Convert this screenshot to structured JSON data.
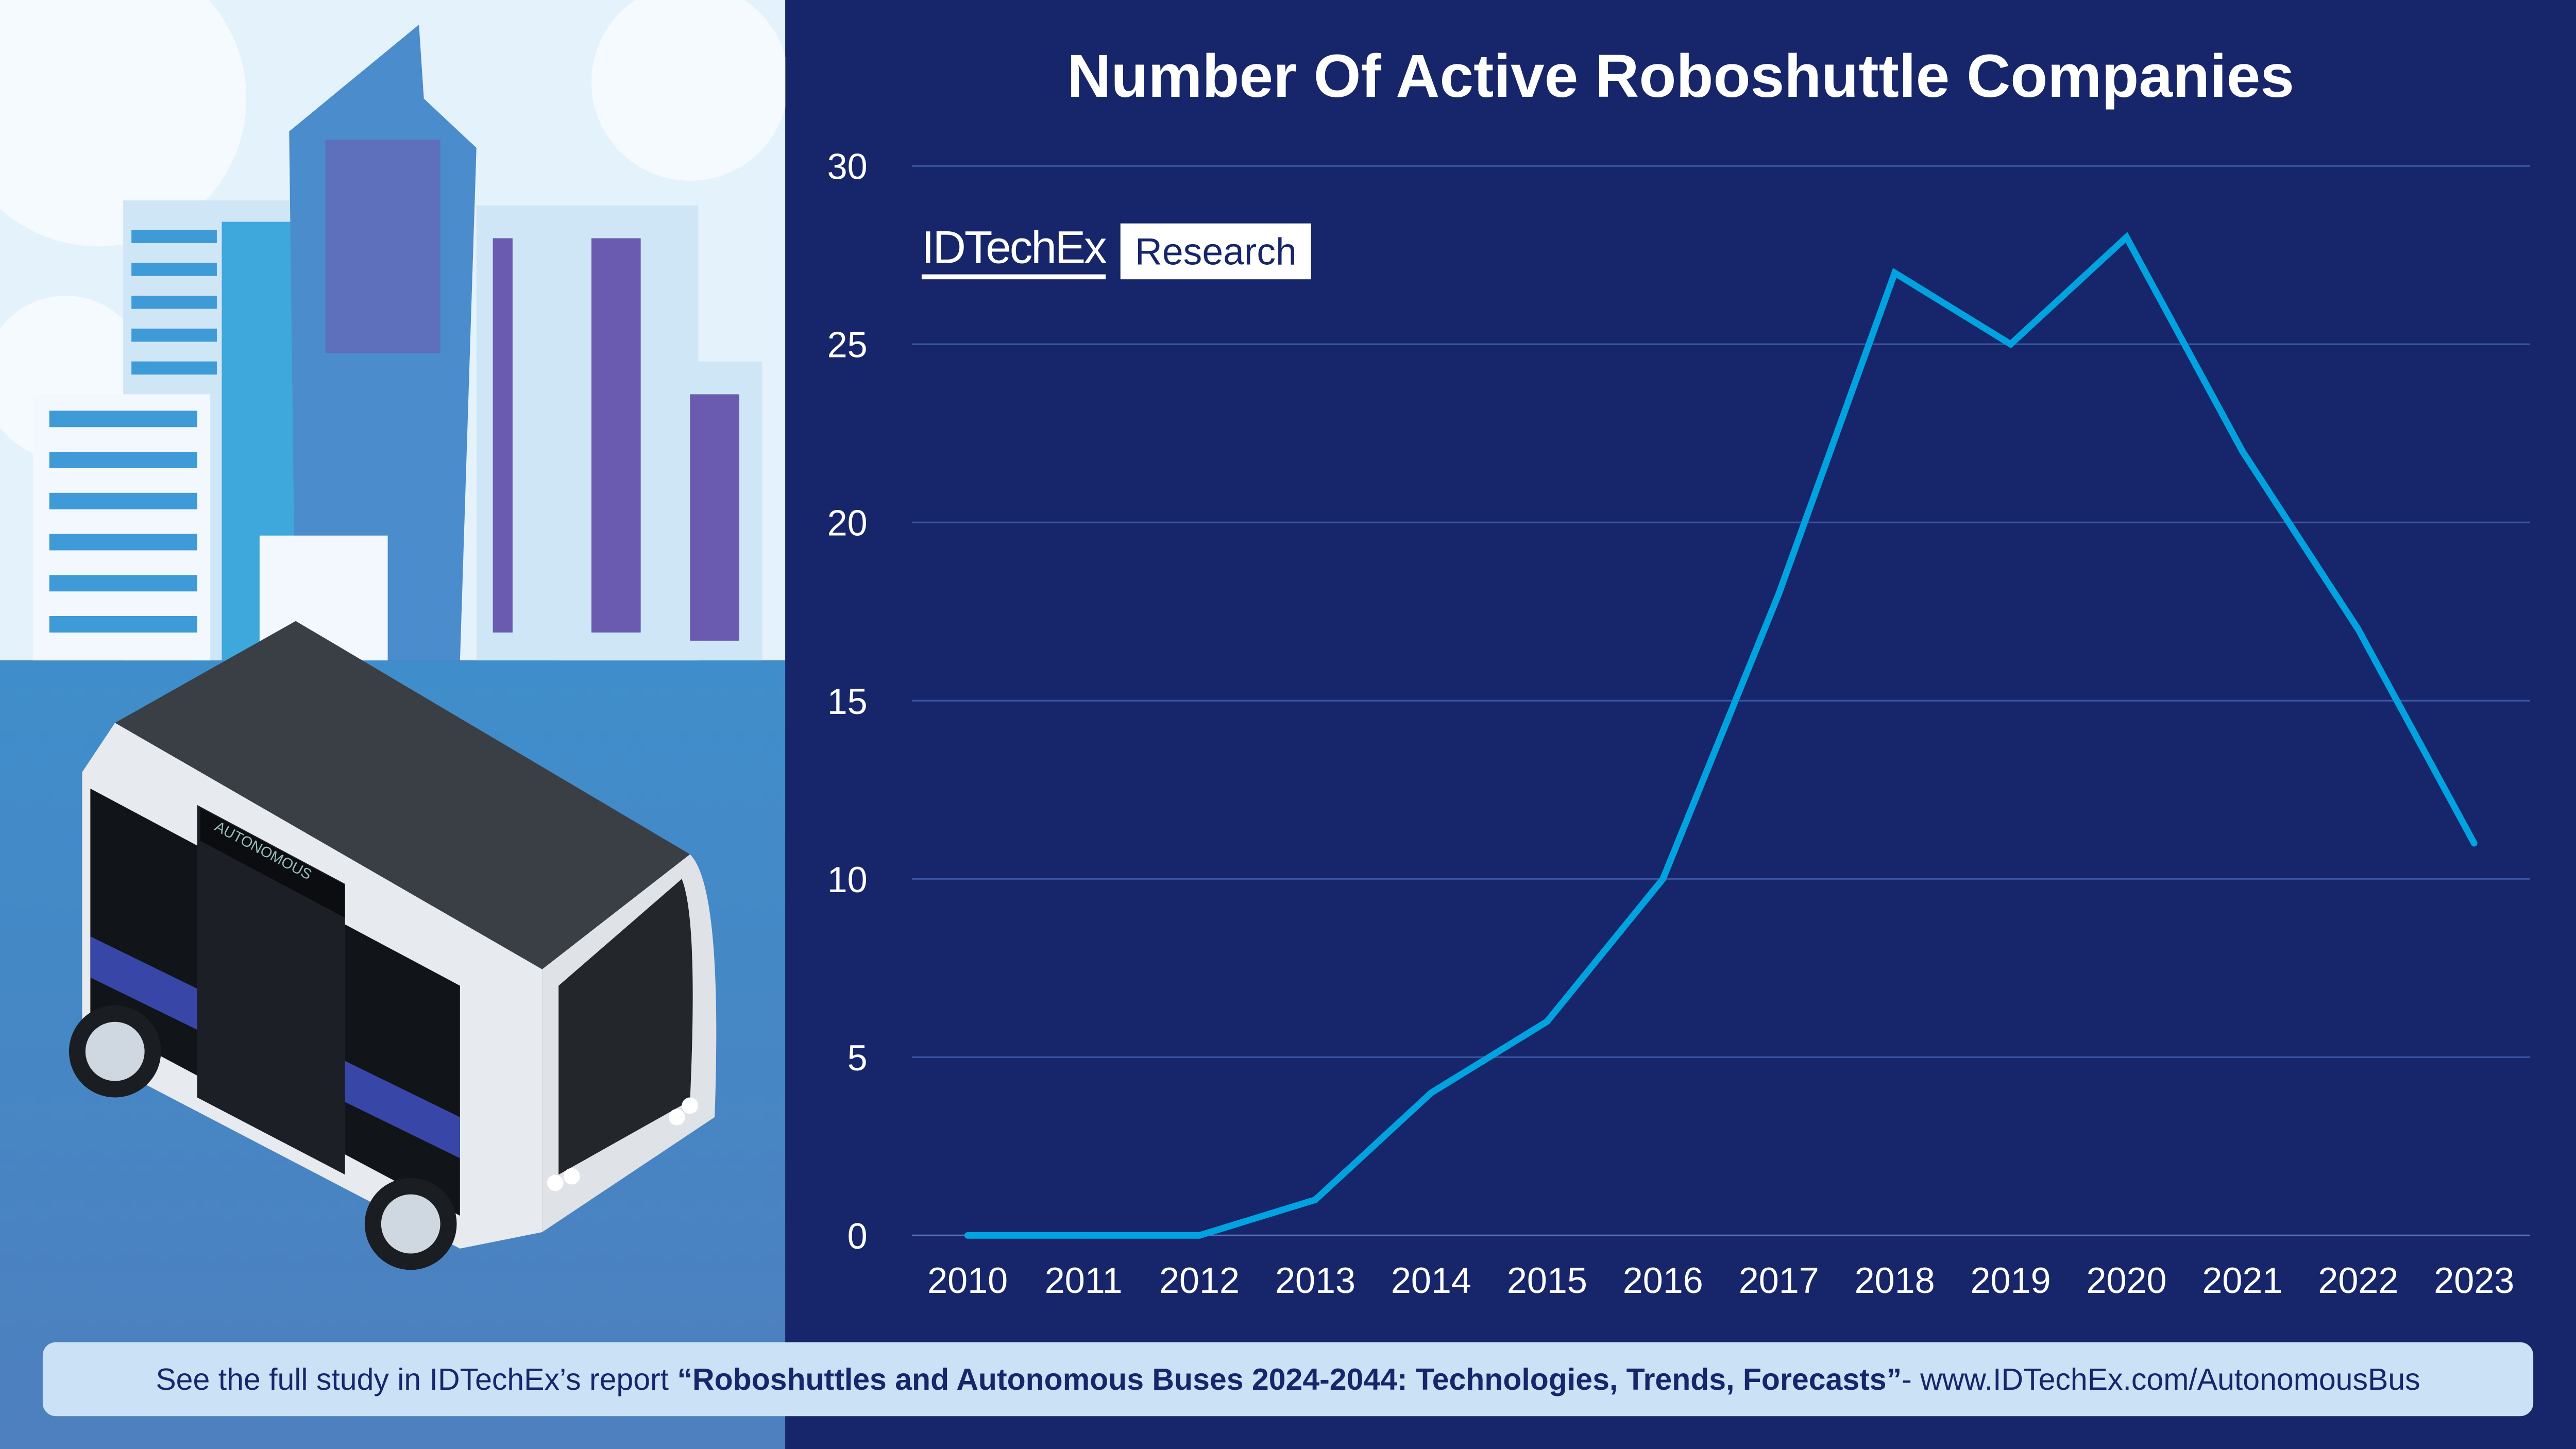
{
  "chart_data": {
    "type": "line",
    "title": "Number Of Active Roboshuttle Companies",
    "x": [
      "2010",
      "2011",
      "2012",
      "2013",
      "2014",
      "2015",
      "2016",
      "2017",
      "2018",
      "2019",
      "2020",
      "2021",
      "2022",
      "2023"
    ],
    "series": [
      {
        "values": [
          0,
          0,
          0,
          1,
          4,
          6,
          10,
          18,
          27,
          25,
          28,
          22,
          17,
          11
        ],
        "color": "#00a3e0"
      }
    ],
    "yticks": [
      "0",
      "5",
      "10",
      "15",
      "20",
      "25",
      "30"
    ],
    "ylim": [
      0,
      30
    ],
    "grid": true,
    "xlabel": "",
    "ylabel": ""
  },
  "logo": {
    "brand": "IDTechEx",
    "suffix": "Research"
  },
  "footer": {
    "prefix": "See the full study in IDTechEx’s report ",
    "report": "“Roboshuttles and Autonomous Buses 2024-2044: Technologies, Trends, Forecasts”",
    "suffix": " - www.IDTechEx.com/AutonomousBus"
  },
  "illustration": {
    "bus_sign": "AUTONOMOUS"
  },
  "colors": {
    "background": "#17266a",
    "line": "#00a3e0",
    "grid": "#3a55a0",
    "footer_bg": "#cae1f6"
  }
}
